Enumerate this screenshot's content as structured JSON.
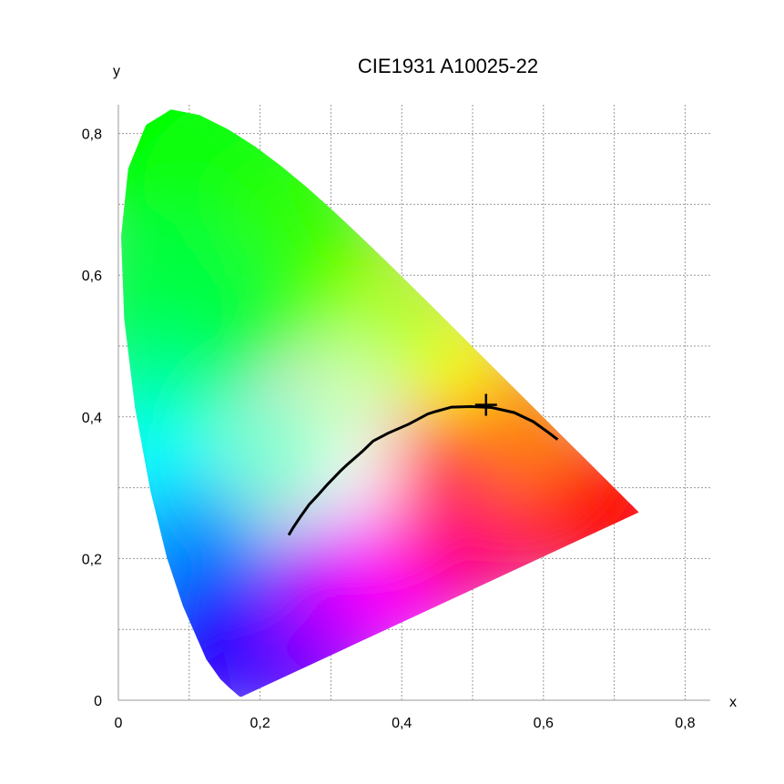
{
  "chart_data": {
    "type": "scatter",
    "title": "CIE1931 A10025-22",
    "xlabel": "x",
    "ylabel": "y",
    "xlim": [
      0,
      0.82
    ],
    "ylim": [
      0,
      0.82
    ],
    "grid": true,
    "x_ticks": [
      "0",
      "0,2",
      "0,4",
      "0,6",
      "0,8"
    ],
    "y_ticks": [
      "0",
      "0,2",
      "0,4",
      "0,6",
      "0,8"
    ],
    "x_tick_values": [
      0,
      0.2,
      0.4,
      0.6,
      0.8
    ],
    "y_tick_values": [
      0,
      0.2,
      0.4,
      0.6,
      0.8
    ],
    "spectral_locus": {
      "x": [
        0.1741,
        0.1738,
        0.1736,
        0.1733,
        0.1726,
        0.1714,
        0.1689,
        0.1644,
        0.1566,
        0.144,
        0.1241,
        0.0913,
        0.0687,
        0.0454,
        0.0235,
        0.0082,
        0.0039,
        0.0139,
        0.0389,
        0.0743,
        0.1142,
        0.1547,
        0.1929,
        0.2296,
        0.2658,
        0.3016,
        0.3373,
        0.3731,
        0.4087,
        0.4441,
        0.4788,
        0.5125,
        0.5448,
        0.5752,
        0.6029,
        0.627,
        0.6482,
        0.6658,
        0.6801,
        0.6915,
        0.7006,
        0.7079,
        0.714,
        0.719,
        0.723,
        0.726,
        0.7283,
        0.73,
        0.7347
      ],
      "y": [
        0.005,
        0.0049,
        0.0049,
        0.0048,
        0.0048,
        0.0051,
        0.0069,
        0.0109,
        0.0177,
        0.0297,
        0.0578,
        0.1327,
        0.2007,
        0.295,
        0.4127,
        0.5384,
        0.6548,
        0.7502,
        0.812,
        0.8338,
        0.8262,
        0.8059,
        0.7816,
        0.7543,
        0.7243,
        0.6923,
        0.6589,
        0.6245,
        0.5896,
        0.5547,
        0.5202,
        0.4866,
        0.4544,
        0.4242,
        0.3965,
        0.3725,
        0.3514,
        0.334,
        0.3197,
        0.3083,
        0.2993,
        0.292,
        0.2859,
        0.2809,
        0.277,
        0.274,
        0.2717,
        0.27,
        0.2653
      ]
    },
    "planckian_locus": {
      "x": [
        0.2405,
        0.2472,
        0.2565,
        0.2693,
        0.2806,
        0.2952,
        0.3135,
        0.3221,
        0.3447,
        0.3597,
        0.3805,
        0.4101,
        0.4369,
        0.4476,
        0.4703,
        0.497,
        0.5267,
        0.5587,
        0.5857,
        0.607,
        0.62
      ],
      "y": [
        0.2331,
        0.2443,
        0.2584,
        0.2762,
        0.2883,
        0.3048,
        0.3237,
        0.3318,
        0.3516,
        0.3659,
        0.3768,
        0.3898,
        0.4041,
        0.4074,
        0.4137,
        0.4145,
        0.4133,
        0.406,
        0.3932,
        0.378,
        0.368
      ]
    },
    "marker": {
      "x": 0.519,
      "y": 0.417,
      "shape": "cross"
    },
    "colors": {
      "curve": "#000000",
      "marker": "#000000",
      "grid": "#9a9a9a"
    }
  }
}
